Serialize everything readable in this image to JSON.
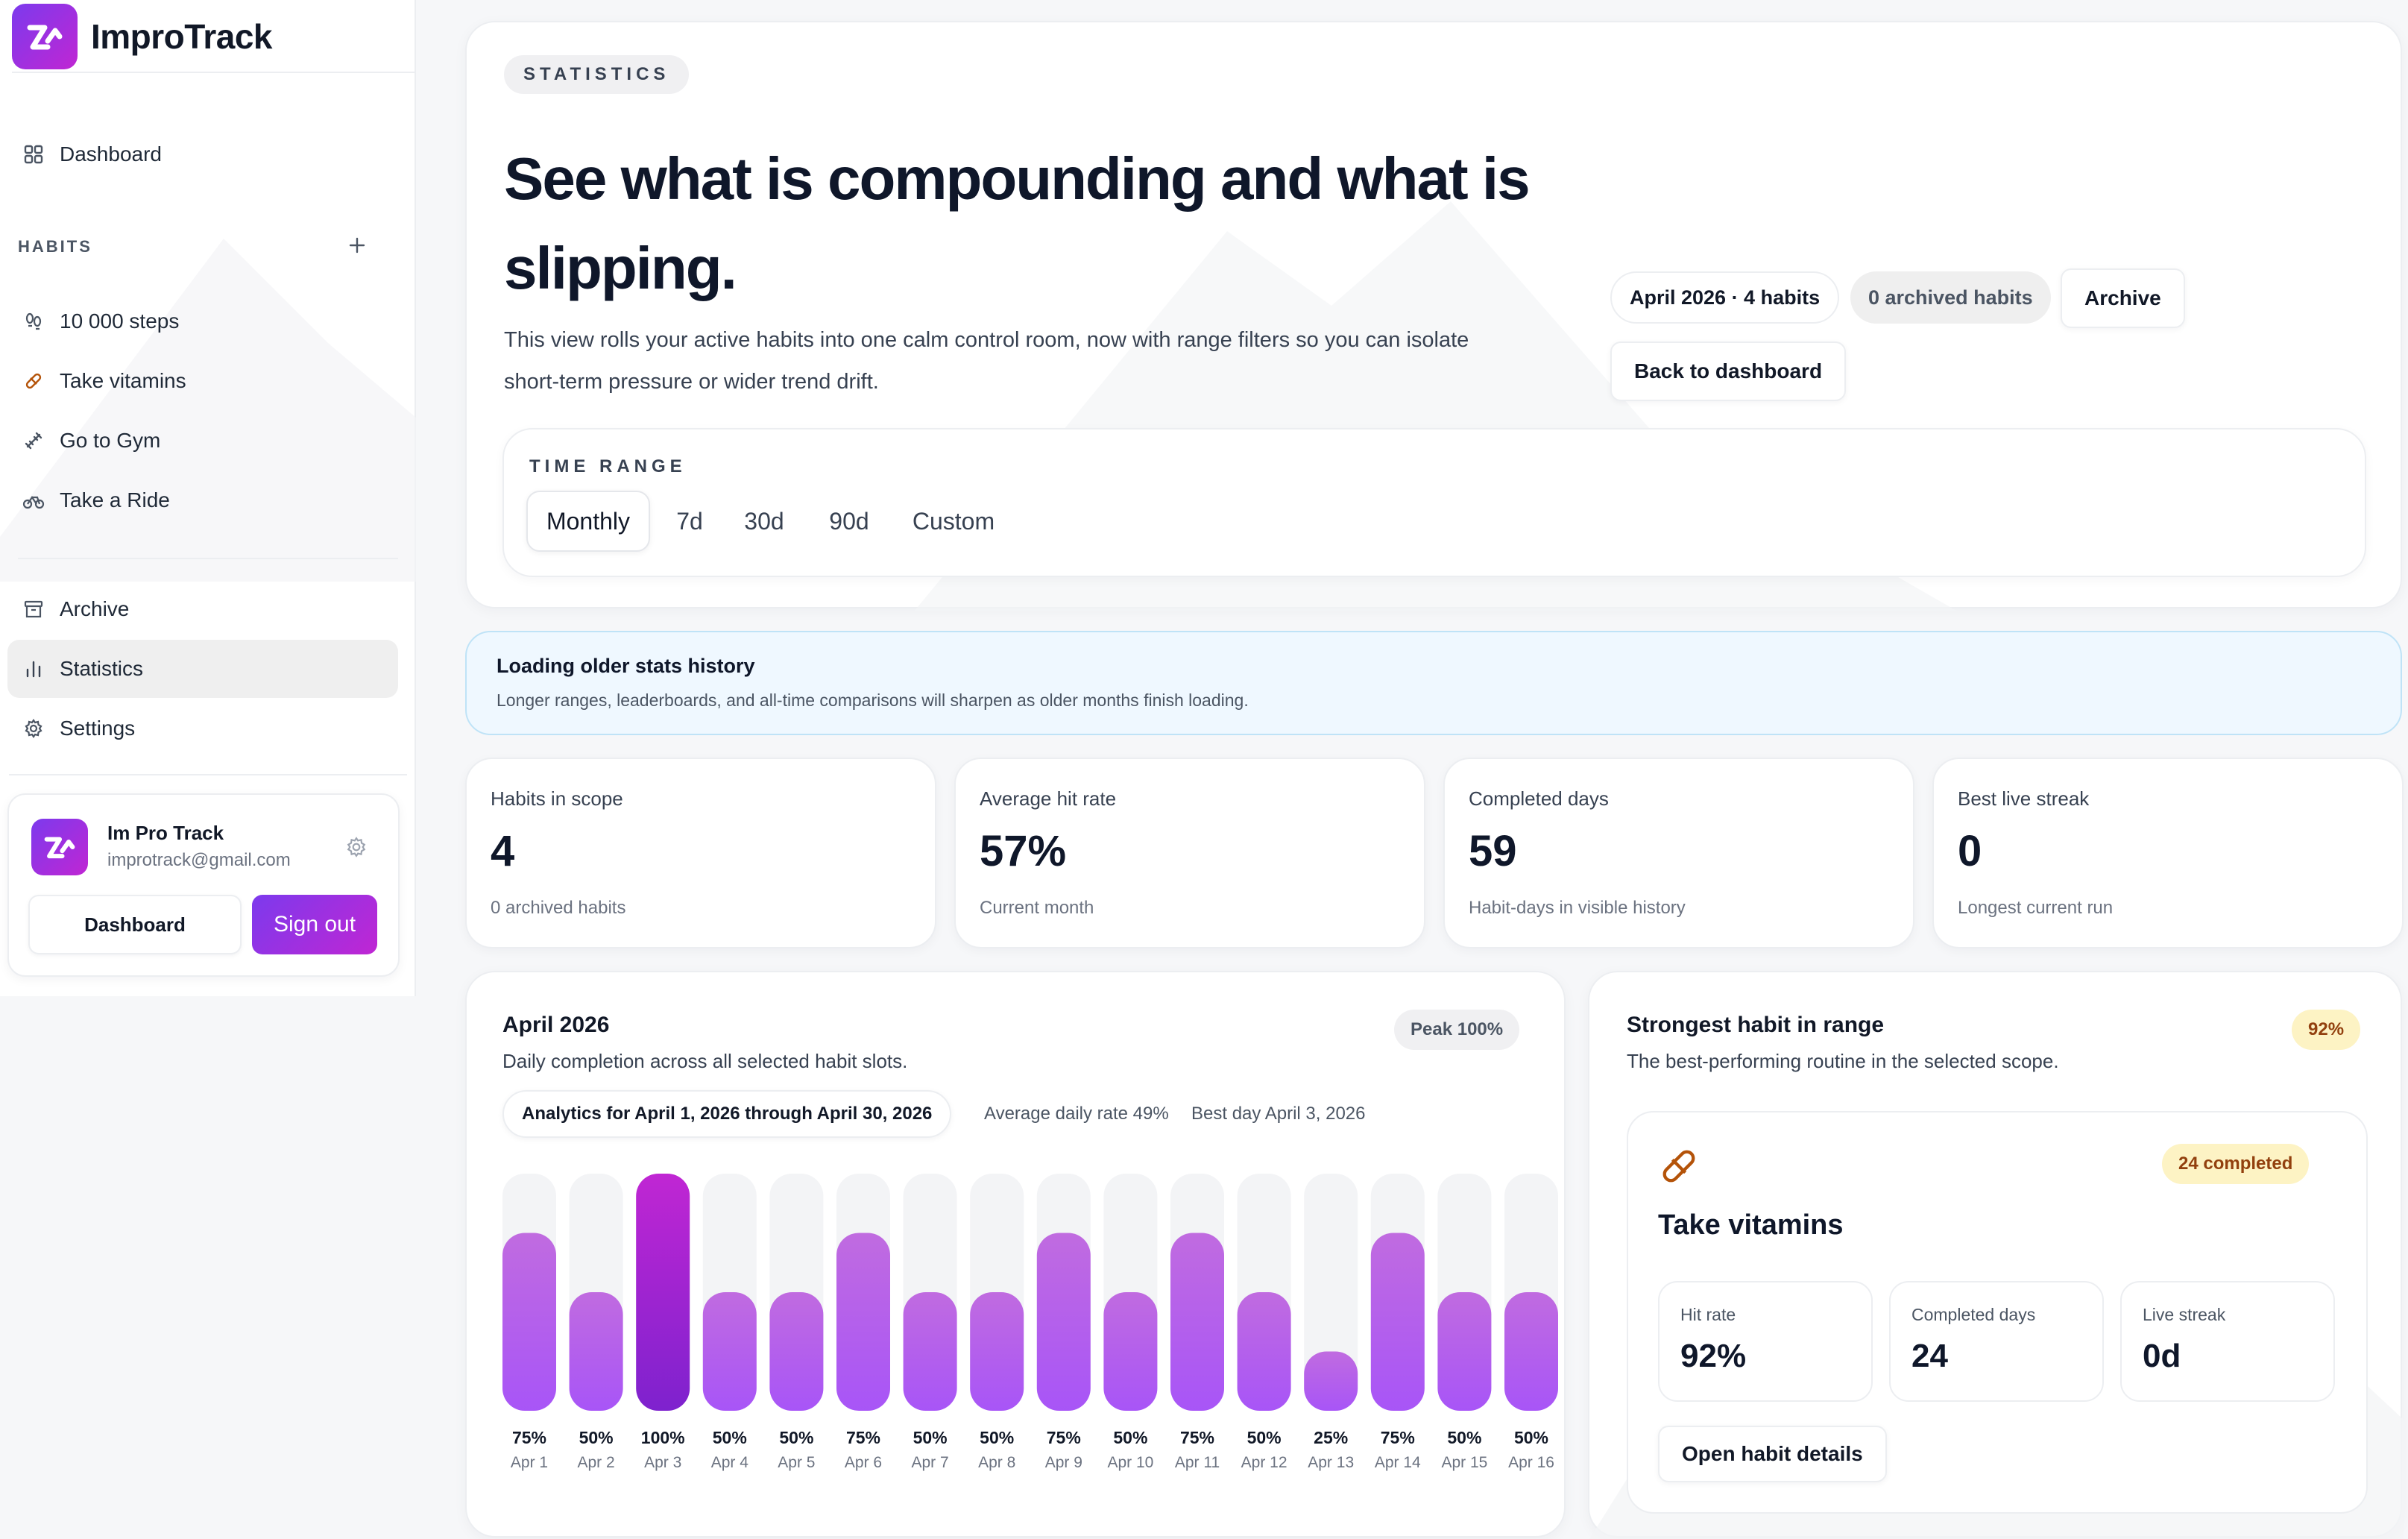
{
  "app": {
    "name": "ImproTrack"
  },
  "sidebar": {
    "dashboard_label": "Dashboard",
    "habits_section_label": "HABITS",
    "habits": [
      {
        "label": "10 000 steps",
        "icon": "footprints-icon"
      },
      {
        "label": "Take vitamins",
        "icon": "pill-icon"
      },
      {
        "label": "Go to Gym",
        "icon": "dumbbell-icon"
      },
      {
        "label": "Take a Ride",
        "icon": "bike-icon"
      }
    ],
    "archive_label": "Archive",
    "statistics_label": "Statistics",
    "settings_label": "Settings",
    "user": {
      "name": "Im Pro Track",
      "email": "improtrack@gmail.com",
      "dashboard_button": "Dashboard",
      "signout_button": "Sign out"
    }
  },
  "hero": {
    "eyebrow": "STATISTICS",
    "title": "See what is compounding and what is slipping.",
    "description": "This view rolls your active habits into one calm control room, now with range filters so you can isolate short-term pressure or wider trend drift.",
    "period_chip": "April 2026 · 4 habits",
    "archived_chip": "0 archived habits",
    "archive_button": "Archive",
    "back_button": "Back to dashboard",
    "time_range": {
      "label": "TIME RANGE",
      "options": [
        "Monthly",
        "7d",
        "30d",
        "90d",
        "Custom"
      ],
      "selected": "Monthly"
    }
  },
  "notice": {
    "title": "Loading older stats history",
    "text": "Longer ranges, leaderboards, and all-time comparisons will sharpen as older months finish loading."
  },
  "stats": [
    {
      "label": "Habits in scope",
      "value": "4",
      "sub": "0 archived habits"
    },
    {
      "label": "Average hit rate",
      "value": "57%",
      "sub": "Current month"
    },
    {
      "label": "Completed days",
      "value": "59",
      "sub": "Habit-days in visible history"
    },
    {
      "label": "Best live streak",
      "value": "0",
      "sub": "Longest current run"
    }
  ],
  "chart_card": {
    "title": "April 2026",
    "subtitle": "Daily completion across all selected habit slots.",
    "peak": "Peak 100%",
    "range_text": "Analytics for April 1, 2026 through April 30, 2026",
    "average_text": "Average daily rate 49%",
    "best_day_text": "Best day April 3, 2026"
  },
  "chart_data": {
    "type": "bar",
    "categories": [
      "Apr 1",
      "Apr 2",
      "Apr 3",
      "Apr 4",
      "Apr 5",
      "Apr 6",
      "Apr 7",
      "Apr 8",
      "Apr 9",
      "Apr 10",
      "Apr 11",
      "Apr 12",
      "Apr 13",
      "Apr 14",
      "Apr 15",
      "Apr 16"
    ],
    "values": [
      75,
      50,
      100,
      50,
      50,
      75,
      50,
      50,
      75,
      50,
      75,
      50,
      25,
      75,
      50,
      50
    ],
    "value_labels": [
      "75%",
      "50%",
      "100%",
      "50%",
      "50%",
      "75%",
      "50%",
      "50%",
      "75%",
      "50%",
      "75%",
      "50%",
      "25%",
      "75%",
      "50%",
      "50%"
    ],
    "ylim": [
      0,
      100
    ],
    "highlight_index": 2,
    "colors": {
      "bar": "#a855f7",
      "bar_peak": "#7e22ce",
      "track": "#f3f4f6"
    }
  },
  "strongest": {
    "title": "Strongest habit in range",
    "subtitle": "The best-performing routine in the selected scope.",
    "badge": "92%",
    "habit": {
      "name": "Take vitamins",
      "icon": "pill-icon",
      "completed_badge": "24 completed",
      "metrics": [
        {
          "label": "Hit rate",
          "value": "92%"
        },
        {
          "label": "Completed days",
          "value": "24"
        },
        {
          "label": "Live streak",
          "value": "0d"
        }
      ],
      "details_button": "Open habit details"
    }
  }
}
